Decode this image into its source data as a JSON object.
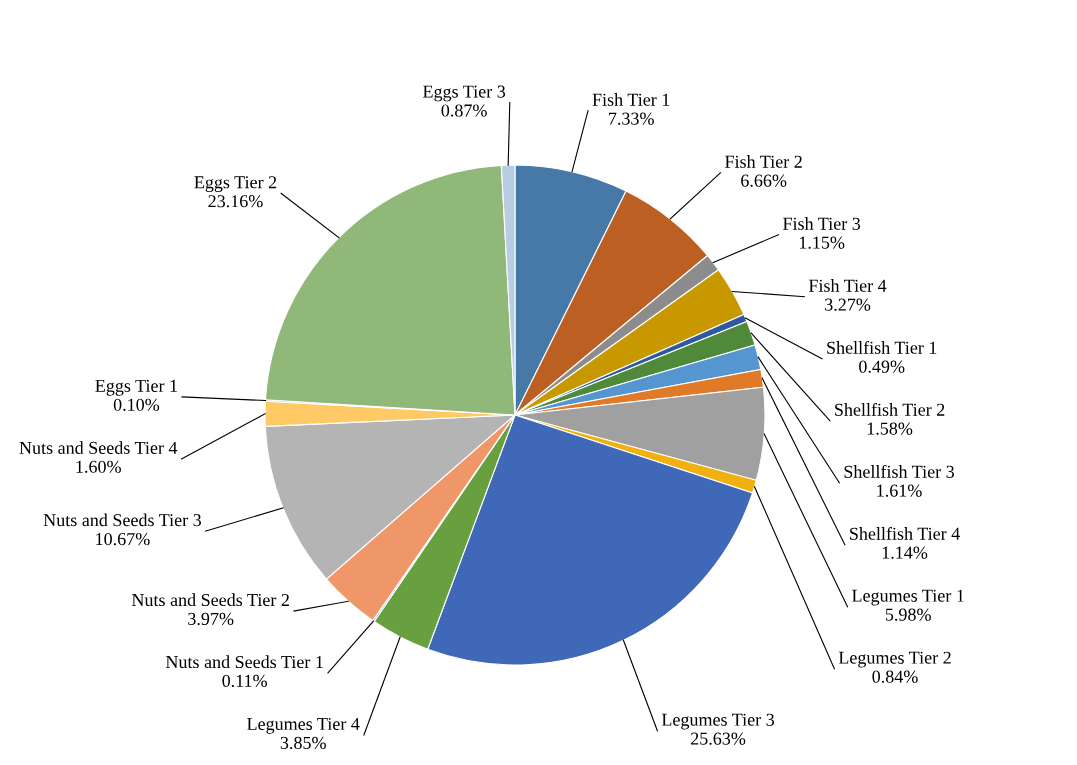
{
  "chart_data": {
    "type": "pie",
    "categories": [
      "Fish Tier 1",
      "Fish Tier 2",
      "Fish Tier 3",
      "Fish Tier 4",
      "Shellfish Tier 1",
      "Shellfish Tier 2",
      "Shellfish Tier 3",
      "Shellfish Tier 4",
      "Legumes Tier 1",
      "Legumes Tier 2",
      "Legumes Tier 3",
      "Legumes Tier 4",
      "Nuts and Seeds Tier 1",
      "Nuts and Seeds Tier 2",
      "Nuts and Seeds Tier 3",
      "Nuts and Seeds Tier 4",
      "Eggs Tier 1",
      "Eggs Tier 2",
      "Eggs Tier 3"
    ],
    "values": [
      7.33,
      6.66,
      1.15,
      3.27,
      0.49,
      1.58,
      1.61,
      1.14,
      5.98,
      0.84,
      25.63,
      3.85,
      0.11,
      3.97,
      10.67,
      1.6,
      0.1,
      23.16,
      0.87
    ],
    "value_labels": [
      "7.33%",
      "6.66%",
      "1.15%",
      "3.27%",
      "0.49%",
      "1.58%",
      "1.61%",
      "1.14%",
      "5.98%",
      "0.84%",
      "25.63%",
      "3.85%",
      "0.11%",
      "3.97%",
      "10.67%",
      "1.60%",
      "0.10%",
      "23.16%",
      "0.87%"
    ],
    "colors": [
      "#4678a8",
      "#bc5f22",
      "#8c8c8c",
      "#c89800",
      "#2e58a0",
      "#4e8a3a",
      "#5596d0",
      "#e07a28",
      "#a0a0a0",
      "#f0b010",
      "#4068b8",
      "#68a040",
      "#7fa8d8",
      "#f0976a",
      "#b4b4b4",
      "#ffc966",
      "#9dc3e6",
      "#90b878",
      "#b8cce4"
    ],
    "legend": false
  }
}
